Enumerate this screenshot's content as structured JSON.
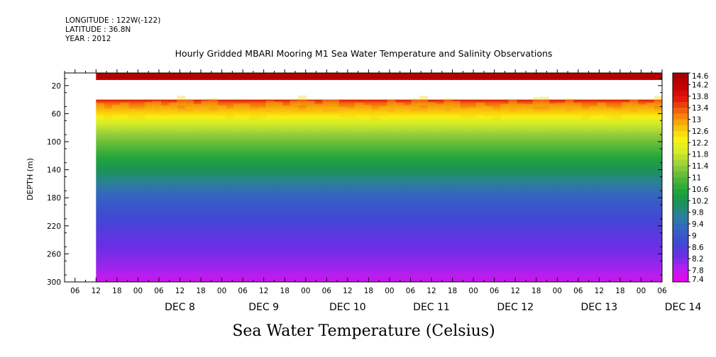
{
  "header": {
    "longitude": "LONGITUDE : 122W(-122)",
    "latitude": "LATITUDE : 36.8N",
    "year": "YEAR : 2012"
  },
  "chart_data": {
    "type": "heatmap",
    "title": "Hourly Gridded MBARI Mooring M1 Sea Water Temperature and Salinity Observations",
    "xlabel": "Sea Water Temperature (Celsius)",
    "ylabel": "DEPTH (m)",
    "x_range_hours_2012_dec": [
      "2012-12-07T03:00",
      "2012-12-14T06:00"
    ],
    "x_major_ticks": [
      {
        "label": "DEC  8",
        "date": "2012-12-08"
      },
      {
        "label": "DEC  9",
        "date": "2012-12-09"
      },
      {
        "label": "DEC 10",
        "date": "2012-12-10"
      },
      {
        "label": "DEC 11",
        "date": "2012-12-11"
      },
      {
        "label": "DEC 12",
        "date": "2012-12-12"
      },
      {
        "label": "DEC 13",
        "date": "2012-12-13"
      },
      {
        "label": "DEC 14",
        "date": "2012-12-14"
      }
    ],
    "x_hour_tick_labels": [
      "06",
      "12",
      "18",
      "00"
    ],
    "y_ticks": [
      20,
      60,
      100,
      140,
      180,
      220,
      260,
      300
    ],
    "ylim": [
      300,
      2
    ],
    "y_reversed": true,
    "data_start": "2012-12-07T12:00",
    "colorbar": {
      "labels": [
        "14.6",
        "14.2",
        "13.8",
        "13.4",
        "13",
        "12.6",
        "12.2",
        "11.8",
        "11.4",
        "11",
        "10.6",
        "10.2",
        "9.8",
        "9.4",
        "9",
        "8.6",
        "8.2",
        "7.8",
        "7.4"
      ],
      "min": 7.4,
      "max": 14.6
    },
    "approx_profile": {
      "depths_m": [
        10,
        40,
        45,
        55,
        70,
        90,
        110,
        130,
        150,
        170,
        190,
        220,
        250,
        280,
        298
      ],
      "temperature_c": [
        14.3,
        13.8,
        13.3,
        12.8,
        12.0,
        11.4,
        10.9,
        10.4,
        9.9,
        9.4,
        9.0,
        8.6,
        8.3,
        8.0,
        7.7
      ]
    },
    "no_data_band_depth_m": [
      12,
      40
    ]
  },
  "colors": {
    "scale": [
      "#ee00ee",
      "#b61ff0",
      "#6a2fe6",
      "#3f49d2",
      "#3563c4",
      "#2a7f9c",
      "#1d9159",
      "#20a43c",
      "#58b83a",
      "#9bd03a",
      "#d8ec26",
      "#fbf20f",
      "#f9b40b",
      "#f46b0b",
      "#e31a0b",
      "#c20000",
      "#a00000"
    ]
  }
}
